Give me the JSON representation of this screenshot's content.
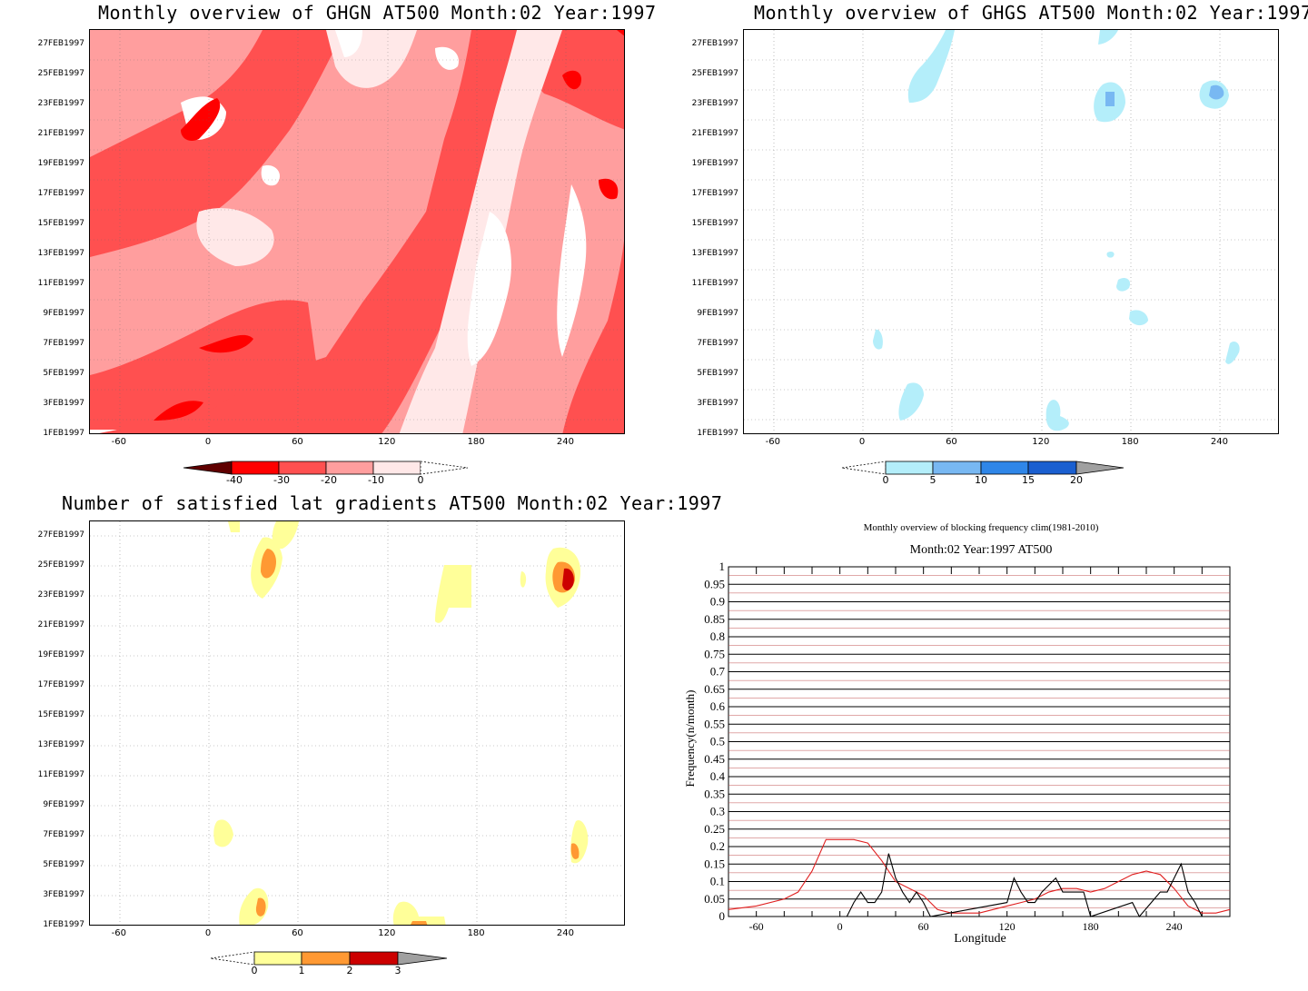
{
  "chart_data": [
    {
      "type": "heatmap",
      "title": "Monthly overview of GHGN AT500 Month:02 Year:1997",
      "y_ticks": [
        "1FEB1997",
        "3FEB1997",
        "5FEB1997",
        "7FEB1997",
        "9FEB1997",
        "11FEB1997",
        "13FEB1997",
        "15FEB1997",
        "17FEB1997",
        "19FEB1997",
        "21FEB1997",
        "23FEB1997",
        "25FEB1997",
        "27FEB1997"
      ],
      "x_ticks": [
        "-60",
        "0",
        "60",
        "120",
        "180",
        "240"
      ],
      "xlim": [
        -80,
        280
      ],
      "colorbar": {
        "ticks": [
          "-40",
          "-30",
          "-20",
          "-10",
          "0"
        ],
        "colors": [
          "#600000",
          "#ff0000",
          "#ff5050",
          "#ff9e9e",
          "#ffe8e8",
          "#ffffff"
        ]
      }
    },
    {
      "type": "heatmap",
      "title": "Monthly overview of GHGS AT500 Month:02 Year:1997",
      "y_ticks": [
        "1FEB1997",
        "3FEB1997",
        "5FEB1997",
        "7FEB1997",
        "9FEB1997",
        "11FEB1997",
        "13FEB1997",
        "15FEB1997",
        "17FEB1997",
        "19FEB1997",
        "21FEB1997",
        "23FEB1997",
        "25FEB1997",
        "27FEB1997"
      ],
      "x_ticks": [
        "-60",
        "0",
        "60",
        "120",
        "180",
        "240"
      ],
      "xlim": [
        -80,
        280
      ],
      "colorbar": {
        "ticks": [
          "0",
          "5",
          "10",
          "15",
          "20"
        ],
        "colors": [
          "#b4eefa",
          "#78b8f2",
          "#2f86e8",
          "#1a5fd0",
          "#a0a0a0"
        ]
      }
    },
    {
      "type": "heatmap",
      "title": "Number of satisfied lat gradients AT500 Month:02 Year:1997",
      "y_ticks": [
        "1FEB1997",
        "3FEB1997",
        "5FEB1997",
        "7FEB1997",
        "9FEB1997",
        "11FEB1997",
        "13FEB1997",
        "15FEB1997",
        "17FEB1997",
        "19FEB1997",
        "21FEB1997",
        "23FEB1997",
        "25FEB1997",
        "27FEB1997"
      ],
      "x_ticks": [
        "-60",
        "0",
        "60",
        "120",
        "180",
        "240"
      ],
      "xlim": [
        -80,
        280
      ],
      "colorbar": {
        "ticks": [
          "0",
          "1",
          "2",
          "3"
        ],
        "colors": [
          "#ffff99",
          "#ff9933",
          "#cc0000",
          "#a0a0a0"
        ]
      }
    },
    {
      "type": "line",
      "title": "Monthly overview of blocking frequency clim(1981-2010)",
      "subtitle": "Month:02 Year:1997  AT500",
      "xlabel": "Longitude",
      "ylabel": "Frequency(n/month)",
      "xlim": [
        -80,
        280
      ],
      "ylim": [
        0,
        1
      ],
      "x_ticks": [
        "-60",
        "0",
        "60",
        "120",
        "180",
        "240"
      ],
      "y_ticks": [
        "0",
        "0.05",
        "0.1",
        "0.15",
        "0.2",
        "0.25",
        "0.3",
        "0.35",
        "0.4",
        "0.45",
        "0.5",
        "0.55",
        "0.6",
        "0.65",
        "0.7",
        "0.75",
        "0.8",
        "0.85",
        "0.9",
        "0.95",
        "1"
      ],
      "series": [
        {
          "color": "#e02020",
          "x": [
            -80,
            -60,
            -40,
            -30,
            -20,
            -10,
            0,
            10,
            20,
            30,
            40,
            50,
            60,
            70,
            80,
            90,
            100,
            110,
            120,
            130,
            140,
            150,
            160,
            170,
            180,
            190,
            200,
            210,
            220,
            230,
            240,
            250,
            260,
            270,
            280
          ],
          "y": [
            0.02,
            0.03,
            0.05,
            0.07,
            0.13,
            0.22,
            0.22,
            0.22,
            0.21,
            0.16,
            0.1,
            0.08,
            0.06,
            0.02,
            0.01,
            0.01,
            0.01,
            0.02,
            0.03,
            0.04,
            0.05,
            0.07,
            0.08,
            0.08,
            0.07,
            0.08,
            0.1,
            0.12,
            0.13,
            0.12,
            0.08,
            0.03,
            0.01,
            0.01,
            0.02
          ]
        },
        {
          "color": "#000000",
          "x": [
            5,
            10,
            15,
            20,
            25,
            30,
            35,
            40,
            45,
            50,
            55,
            60,
            65,
            120,
            125,
            130,
            135,
            140,
            145,
            155,
            160,
            165,
            170,
            175,
            180,
            210,
            215,
            230,
            235,
            240,
            245,
            250,
            255,
            260
          ],
          "y": [
            0,
            0.04,
            0.07,
            0.04,
            0.04,
            0.07,
            0.18,
            0.11,
            0.07,
            0.04,
            0.07,
            0.04,
            0,
            0.04,
            0.11,
            0.07,
            0.04,
            0.04,
            0.07,
            0.11,
            0.07,
            0.07,
            0.07,
            0.07,
            0,
            0.04,
            0,
            0.07,
            0.07,
            0.11,
            0.15,
            0.07,
            0.04,
            0
          ]
        }
      ]
    }
  ]
}
